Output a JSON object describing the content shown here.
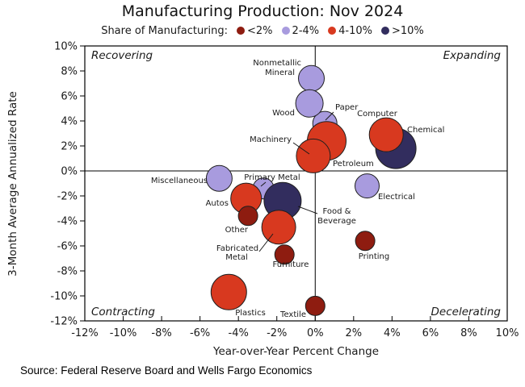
{
  "title": "Manufacturing Production: Nov 2024",
  "source": "Source: Federal Reserve Board and Wells Fargo Economics",
  "chart_data": {
    "type": "scatter",
    "title": "Manufacturing Production: Nov 2024",
    "legend_title": "Share of Manufacturing:",
    "legend": [
      {
        "label": "<2%",
        "color": "#8E1C10"
      },
      {
        "label": "2-4%",
        "color": "#A89BDE"
      },
      {
        "label": "4-10%",
        "color": "#D8391F"
      },
      {
        "label": ">10%",
        "color": "#322D5E"
      }
    ],
    "colors": {
      "<2%": "#8E1C10",
      "2-4%": "#A89BDE",
      "4-10%": "#D8391F",
      ">10%": "#322D5E"
    },
    "xlabel": "Year-over-Year Percent Change",
    "ylabel": "3-Month Average Annualized Rate",
    "xlim": [
      -12,
      10
    ],
    "ylim": [
      -12,
      10
    ],
    "x_tick_labels": [
      "-12%",
      "-10%",
      "-8%",
      "-6%",
      "-4%",
      "-2%",
      "0%",
      "2%",
      "4%",
      "6%",
      "8%",
      "10%"
    ],
    "y_tick_labels": [
      "10%",
      "8%",
      "6%",
      "4%",
      "2%",
      "0%",
      "-2%",
      "-4%",
      "-6%",
      "-8%",
      "-10%",
      "-12%"
    ],
    "grid": false,
    "legend_position": "top",
    "quadrants": {
      "top_left": "Recovering",
      "top_right": "Expanding",
      "bottom_left": "Contracting",
      "bottom_right": "Decelerating"
    },
    "points": [
      {
        "label": "Paper",
        "x": 0.5,
        "y": 3.8,
        "share": "2-4%",
        "r": 15
      },
      {
        "label": "Petroleum",
        "x": 0.6,
        "y": 2.4,
        "share": "4-10%",
        "r": 24
      },
      {
        "label": "Machinery",
        "x": -0.1,
        "y": 1.2,
        "share": "4-10%",
        "r": 21
      },
      {
        "label": "Chemical",
        "x": 4.2,
        "y": 1.8,
        "share": ">10%",
        "r": 25
      },
      {
        "label": "Computer",
        "x": 3.7,
        "y": 2.9,
        "share": "4-10%",
        "r": 21
      },
      {
        "label": "Nonmetallic Mineral",
        "x": -0.2,
        "y": 7.4,
        "share": "2-4%",
        "r": 16
      },
      {
        "label": "Wood",
        "x": -0.3,
        "y": 5.4,
        "share": "2-4%",
        "r": 17
      },
      {
        "label": "Miscellaneous",
        "x": -5.0,
        "y": -0.6,
        "share": "2-4%",
        "r": 16
      },
      {
        "label": "Primary Metal",
        "x": -2.7,
        "y": -1.4,
        "share": "2-4%",
        "r": 13
      },
      {
        "label": "Autos",
        "x": -3.6,
        "y": -2.2,
        "share": "4-10%",
        "r": 19
      },
      {
        "label": "Food & Beverage",
        "x": -1.7,
        "y": -2.4,
        "share": ">10%",
        "r": 23
      },
      {
        "label": "Other",
        "x": -3.5,
        "y": -3.6,
        "share": "<2%",
        "r": 12
      },
      {
        "label": "Fabricated Metal",
        "x": -1.9,
        "y": -4.5,
        "share": "4-10%",
        "r": 21
      },
      {
        "label": "Electrical",
        "x": 2.7,
        "y": -1.2,
        "share": "2-4%",
        "r": 15
      },
      {
        "label": "Furniture",
        "x": -1.6,
        "y": -6.7,
        "share": "<2%",
        "r": 12
      },
      {
        "label": "Printing",
        "x": 2.6,
        "y": -5.6,
        "share": "<2%",
        "r": 12
      },
      {
        "label": "Plastics",
        "x": -4.5,
        "y": -9.7,
        "share": "4-10%",
        "r": 22
      },
      {
        "label": "Textile",
        "x": 0.0,
        "y": -10.8,
        "share": "<2%",
        "r": 12
      }
    ]
  }
}
